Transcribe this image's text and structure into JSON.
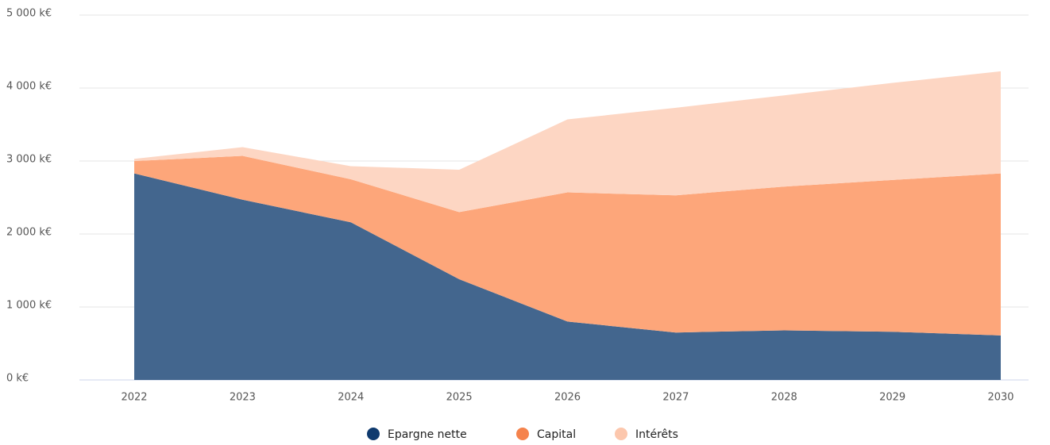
{
  "chart_data": {
    "type": "stacked_area",
    "categories": [
      "2022",
      "2023",
      "2024",
      "2025",
      "2026",
      "2027",
      "2028",
      "2029",
      "2030"
    ],
    "series": [
      {
        "name": "Epargne nette",
        "color": "#43668e",
        "marker_color": "#0f3a6e",
        "values": [
          2830,
          2470,
          2160,
          1380,
          800,
          650,
          680,
          660,
          610
        ]
      },
      {
        "name": "Capital",
        "color": "#fda67a",
        "marker_color": "#f5834c",
        "values": [
          170,
          600,
          590,
          920,
          1770,
          1880,
          1970,
          2080,
          2220
        ]
      },
      {
        "name": "Intérêts",
        "color": "#fdd6c3",
        "marker_color": "#fcc7ad",
        "values": [
          30,
          120,
          180,
          580,
          1000,
          1200,
          1250,
          1330,
          1400
        ]
      }
    ],
    "ylim": [
      0,
      5000
    ],
    "yticks": [
      {
        "value": 0,
        "label": "0 k€"
      },
      {
        "value": 1000,
        "label": "1 000 k€"
      },
      {
        "value": 2000,
        "label": "2 000 k€"
      },
      {
        "value": 3000,
        "label": "3 000 k€"
      },
      {
        "value": 4000,
        "label": "4 000 k€"
      },
      {
        "value": 5000,
        "label": "5 000 k€"
      }
    ],
    "grid": true,
    "legend": "bottom"
  }
}
